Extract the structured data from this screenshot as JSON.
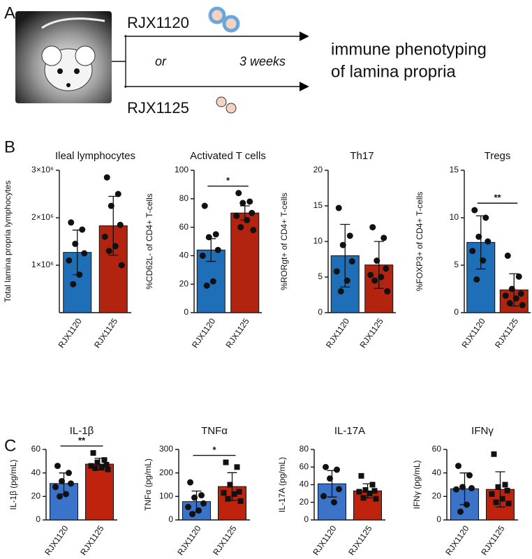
{
  "panel_labels": [
    "A",
    "B",
    "C"
  ],
  "diagram": {
    "strain_1": "RJX1120",
    "strain_2": "RJX1125",
    "or": "or",
    "duration": "3 weeks",
    "outcome_1": "immune phenotyping",
    "outcome_2": "of lamina propria"
  },
  "chart_data": [
    {
      "type": "bar",
      "title": "Ileal lymphocytes",
      "ylabel": "Total lamina propria lymphocytes",
      "categories": [
        "RJX1120",
        "RJX1125"
      ],
      "values": [
        1270000,
        1830000
      ],
      "errors": [
        470000,
        620000
      ],
      "points": [
        [
          1900000,
          1750000,
          1450000,
          1250000,
          1100000,
          800000,
          600000
        ],
        [
          2850000,
          2500000,
          2250000,
          1850000,
          1600000,
          1400000,
          1300000,
          1000000
        ]
      ],
      "colors": [
        "#1f6fb8",
        "#b32410"
      ],
      "markers": [
        "circle",
        "circle"
      ],
      "ylim": [
        0,
        3000000
      ],
      "yticks": [
        {
          "value": 1000000,
          "label": "1×10⁶"
        },
        {
          "value": 2000000,
          "label": "2×10⁶"
        },
        {
          "value": 3000000,
          "label": "3×10⁶"
        }
      ]
    },
    {
      "type": "bar",
      "title": "Activated T cells",
      "ylabel": "%CD62L- of CD4+ T-cells",
      "categories": [
        "RJX1120",
        "RJX1125"
      ],
      "values": [
        44,
        70
      ],
      "errors": [
        8,
        5
      ],
      "points": [
        [
          75,
          55,
          53,
          44,
          40,
          22,
          19
        ],
        [
          84,
          78,
          77,
          70,
          68,
          65,
          60,
          58
        ]
      ],
      "colors": [
        "#1f6fb8",
        "#b32410"
      ],
      "markers": [
        "circle",
        "circle"
      ],
      "significance": "*",
      "ylim": [
        0,
        100
      ],
      "yticks": [
        0,
        20,
        40,
        60,
        80,
        100
      ]
    },
    {
      "type": "bar",
      "title": "Th17",
      "ylabel": "%RORgt+ of CD4+ T-cells",
      "categories": [
        "RJX1120",
        "RJX1125"
      ],
      "values": [
        8,
        6.7
      ],
      "errors": [
        4.4,
        3.3
      ],
      "points": [
        [
          14.7,
          10.8,
          9.5,
          7.2,
          5.8,
          4.5,
          3
        ],
        [
          12,
          10.5,
          7.3,
          6.2,
          5.3,
          5,
          4.5,
          3
        ]
      ],
      "colors": [
        "#1f6fb8",
        "#b32410"
      ],
      "markers": [
        "circle",
        "circle"
      ],
      "ylim": [
        0,
        20
      ],
      "yticks": [
        0,
        5,
        10,
        15,
        20
      ]
    },
    {
      "type": "bar",
      "title": "Tregs",
      "ylabel": "%FOXP3+ of CD4+ T-cells",
      "categories": [
        "RJX1120",
        "RJX1125"
      ],
      "values": [
        7.4,
        2.4
      ],
      "errors": [
        2.8,
        1.7
      ],
      "points": [
        [
          10.8,
          10,
          8,
          7.5,
          6.5,
          5.5,
          3.5
        ],
        [
          6,
          3.8,
          2.5,
          2,
          1.8,
          1.5,
          1,
          0.8
        ]
      ],
      "colors": [
        "#1f6fb8",
        "#b32410"
      ],
      "markers": [
        "circle",
        "circle"
      ],
      "significance": "**",
      "ylim": [
        0,
        15
      ],
      "yticks": [
        0,
        5,
        10,
        15
      ]
    },
    {
      "type": "bar",
      "title": "IL-1β",
      "ylabel": "IL-1β (pg/mL)",
      "categories": [
        "RJX1120",
        "RJX1125"
      ],
      "values": [
        31,
        47.5
      ],
      "errors": [
        9,
        5
      ],
      "points": [
        [
          46,
          40,
          33,
          31,
          28,
          22,
          20
        ],
        [
          57,
          51,
          49,
          47,
          46,
          45,
          44,
          43
        ]
      ],
      "colors": [
        "#3a73c8",
        "#c0230d"
      ],
      "markers": [
        "circle",
        "square"
      ],
      "significance": "**",
      "ylim": [
        0,
        60
      ],
      "yticks": [
        0,
        20,
        40,
        60
      ]
    },
    {
      "type": "bar",
      "title": "TNFα",
      "ylabel": "TNFα (pg/mL)",
      "categories": [
        "RJX1120",
        "RJX1125"
      ],
      "values": [
        78,
        142
      ],
      "errors": [
        45,
        59
      ],
      "points": [
        [
          160,
          105,
          95,
          70,
          55,
          40,
          25
        ],
        [
          245,
          225,
          150,
          120,
          115,
          110,
          90,
          80
        ]
      ],
      "colors": [
        "#3a73c8",
        "#c0230d"
      ],
      "markers": [
        "circle",
        "square"
      ],
      "significance": "*",
      "ylim": [
        0,
        300
      ],
      "yticks": [
        0,
        100,
        200,
        300
      ]
    },
    {
      "type": "bar",
      "title": "IL-17A",
      "ylabel": "IL-17A (pg/mL)",
      "categories": [
        "RJX1120",
        "RJX1125"
      ],
      "values": [
        41,
        33
      ],
      "errors": [
        15,
        8
      ],
      "points": [
        [
          60,
          57,
          47,
          35,
          27,
          20
        ],
        [
          50,
          40,
          34,
          33,
          32,
          30,
          25,
          24
        ]
      ],
      "colors": [
        "#3a73c8",
        "#c0230d"
      ],
      "markers": [
        "circle",
        "square"
      ],
      "ylim": [
        0,
        80
      ],
      "yticks": [
        0,
        20,
        40,
        60,
        80
      ]
    },
    {
      "type": "bar",
      "title": "IFNγ",
      "ylabel": "IFNγ (pg/mL)",
      "categories": [
        "RJX1120",
        "RJX1125"
      ],
      "values": [
        26.5,
        26
      ],
      "errors": [
        13.5,
        15
      ],
      "points": [
        [
          46,
          38,
          28,
          27,
          26,
          13,
          7
        ],
        [
          56,
          30,
          28,
          25,
          22,
          18,
          15,
          14
        ]
      ],
      "colors": [
        "#3a73c8",
        "#c0230d"
      ],
      "markers": [
        "circle",
        "square"
      ],
      "ylim": [
        0,
        60
      ],
      "yticks": [
        0,
        20,
        40,
        60
      ]
    }
  ]
}
